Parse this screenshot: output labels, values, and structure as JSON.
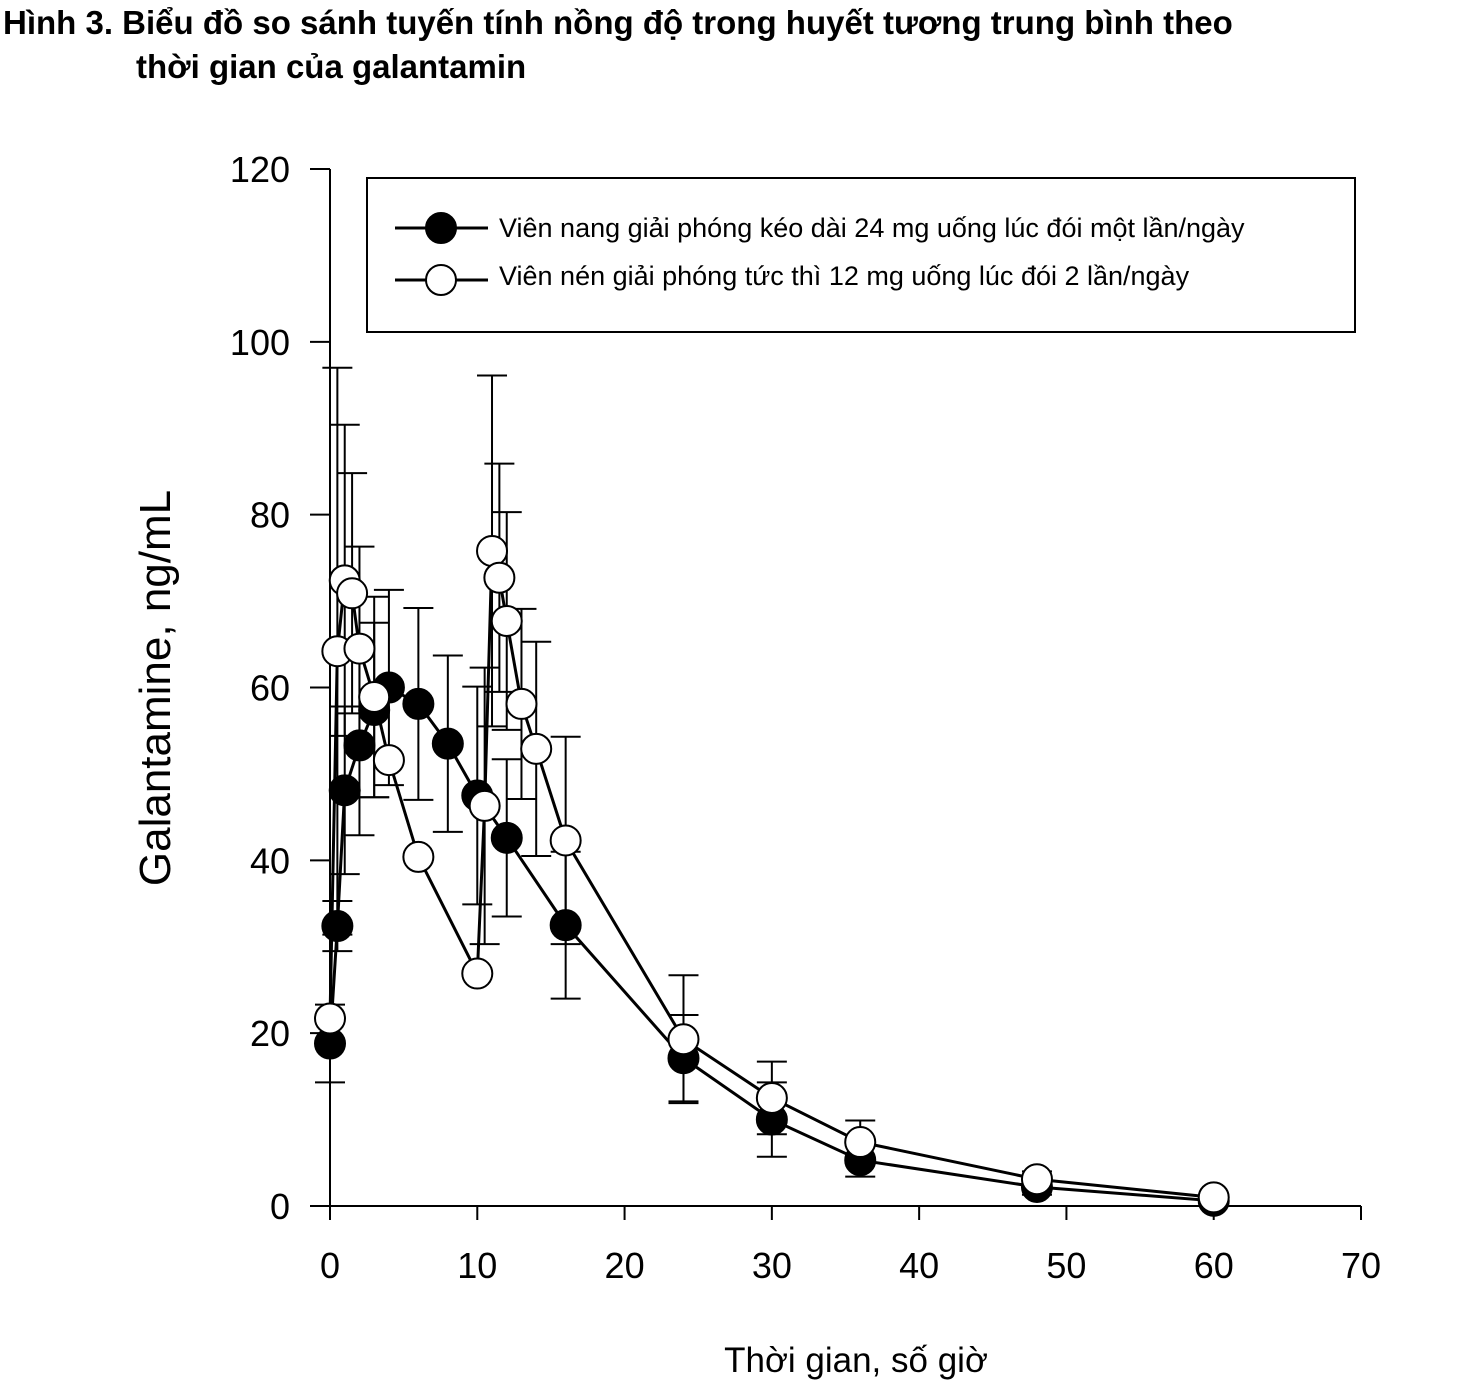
{
  "caption": {
    "line1": "Hình 3. Biểu đồ so sánh tuyến tính nồng độ trong huyết tương trung bình theo",
    "line2": "thời gian của galantamin"
  },
  "chart_data": {
    "type": "line",
    "xlabel": "Thời gian, số giờ",
    "ylabel": "Galantamine, ng/mL",
    "xlim": [
      0,
      70
    ],
    "ylim": [
      0,
      120
    ],
    "xticks": [
      0,
      10,
      20,
      30,
      40,
      50,
      60,
      70
    ],
    "yticks": [
      0,
      20,
      40,
      60,
      80,
      100,
      120
    ],
    "grid": false,
    "legend_position": "top-right",
    "series": [
      {
        "name": "Viên nang giải phóng kéo dài 24 mg uống lúc đói một lần/ngày",
        "marker": "filled-circle",
        "x": [
          0,
          0.5,
          1,
          2,
          3,
          4,
          6,
          8,
          10,
          12,
          16,
          24,
          30,
          36,
          48,
          60
        ],
        "y": [
          18.8,
          32.4,
          48.1,
          53.3,
          57.4,
          60.0,
          58.1,
          53.5,
          47.5,
          42.6,
          32.5,
          17.1,
          10.0,
          5.3,
          2.2,
          0.6
        ],
        "err": [
          4.5,
          2.9,
          9.7,
          10.4,
          10.1,
          11.3,
          11.1,
          10.2,
          12.6,
          9.1,
          8.5,
          5.0,
          4.3,
          1.9,
          0.9,
          0.3
        ]
      },
      {
        "name": "Viên nén giải phóng tức thì 12 mg uống lúc đói 2 lần/ngày",
        "marker": "open-circle",
        "x": [
          0,
          0.5,
          1,
          1.5,
          2,
          3,
          4,
          6,
          10,
          10.5,
          11,
          11.5,
          12,
          13,
          14,
          16,
          24,
          30,
          36,
          48,
          60
        ],
        "y": [
          21.7,
          64.2,
          72.4,
          70.9,
          64.5,
          58.9,
          51.6,
          40.4,
          26.9,
          46.3,
          75.8,
          72.7,
          67.7,
          58.1,
          52.9,
          42.3,
          19.3,
          12.5,
          7.4,
          3.1,
          1.0
        ],
        "err": [
          0,
          32.8,
          18.0,
          13.9,
          11.8,
          11.6,
          0,
          0,
          0,
          16.0,
          20.3,
          13.2,
          12.6,
          11.0,
          12.4,
          12.0,
          7.4,
          4.2,
          2.5,
          0.9,
          0.5
        ]
      }
    ]
  }
}
